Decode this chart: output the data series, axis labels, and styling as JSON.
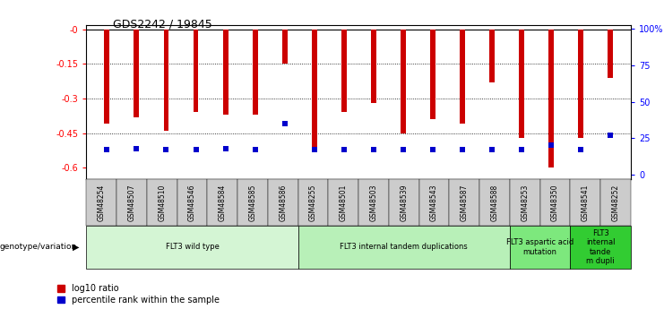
{
  "title": "GDS2242 / 19845",
  "samples": [
    "GSM48254",
    "GSM48507",
    "GSM48510",
    "GSM48546",
    "GSM48584",
    "GSM48585",
    "GSM48586",
    "GSM48255",
    "GSM48501",
    "GSM48503",
    "GSM48539",
    "GSM48543",
    "GSM48587",
    "GSM48588",
    "GSM48253",
    "GSM48350",
    "GSM48541",
    "GSM48252"
  ],
  "log10_ratio": [
    -0.41,
    -0.38,
    -0.44,
    -0.36,
    -0.37,
    -0.37,
    -0.15,
    -0.51,
    -0.36,
    -0.32,
    -0.45,
    -0.39,
    -0.41,
    -0.23,
    -0.47,
    -0.6,
    -0.47,
    -0.21
  ],
  "percentile_rank": [
    17,
    18,
    17,
    17,
    18,
    17,
    35,
    17,
    17,
    17,
    17,
    17,
    17,
    17,
    17,
    20,
    17,
    27
  ],
  "groups": [
    {
      "label": "FLT3 wild type",
      "start": 0,
      "end": 7,
      "color": "#d4f5d4"
    },
    {
      "label": "FLT3 internal tandem duplications",
      "start": 7,
      "end": 14,
      "color": "#b8f0b8"
    },
    {
      "label": "FLT3 aspartic acid\nmutation",
      "start": 14,
      "end": 16,
      "color": "#7de87d"
    },
    {
      "label": "FLT3\ninternal\ntande\nm dupli",
      "start": 16,
      "end": 18,
      "color": "#32cc32"
    }
  ],
  "ylim_left": [
    -0.65,
    0.02
  ],
  "yticks_left": [
    0,
    -0.15,
    -0.3,
    -0.45,
    -0.6
  ],
  "ytick_labels_left": [
    "-0",
    "-0.15",
    "-0.3",
    "-0.45",
    "-0.6"
  ],
  "ylim_right": [
    -3.25,
    103
  ],
  "yticks_right": [
    0,
    25,
    50,
    75,
    100
  ],
  "ytick_labels_right": [
    "0",
    "25",
    "50",
    "75",
    "100%"
  ],
  "bar_color": "#cc0000",
  "dot_color": "#0000cc",
  "bar_width": 0.18,
  "legend_items": [
    {
      "label": "log10 ratio",
      "color": "#cc0000"
    },
    {
      "label": "percentile rank within the sample",
      "color": "#0000cc"
    }
  ],
  "grid_yticks": [
    -0.15,
    -0.3,
    -0.45
  ],
  "tick_bg_color": "#cccccc",
  "figsize": [
    7.41,
    3.45
  ],
  "dpi": 100
}
